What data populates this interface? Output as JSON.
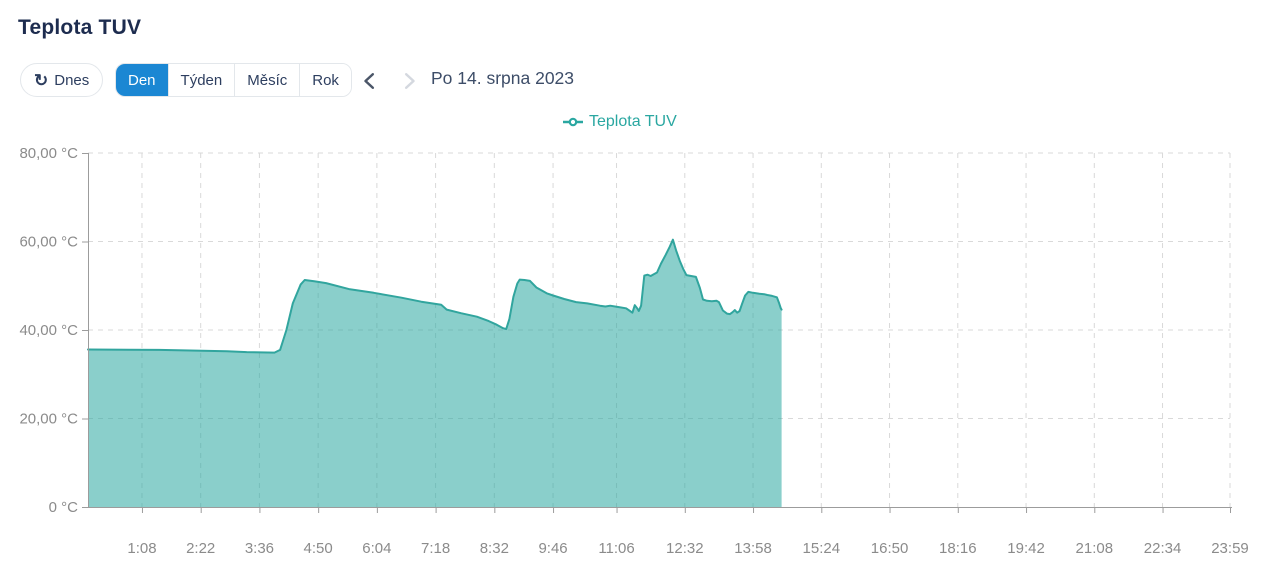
{
  "page": {
    "title": "Teplota TUV"
  },
  "toolbar": {
    "today_label": "Dnes",
    "refresh_icon_glyph": "↻",
    "range_buttons": [
      {
        "label": "Den",
        "active": true
      },
      {
        "label": "Týden",
        "active": false
      },
      {
        "label": "Měsíc",
        "active": false
      },
      {
        "label": "Rok",
        "active": false
      }
    ],
    "date_label": "Po 14. srpna 2023"
  },
  "legend": {
    "label": "Teplota TUV",
    "position": "top-center"
  },
  "colors": {
    "accent_blue": "#1b87d3",
    "series_teal": "#2aa7a1",
    "series_line": "#31a59e",
    "area_fill": "rgba(42,167,161,0.55)",
    "grid": "#d9d9d9",
    "axis": "#9c9c9c",
    "tick_text": "#8b8b8b",
    "title_text": "#1d2c4f",
    "chevron_active": "#4b5668",
    "chevron_disabled": "#d4d8df"
  },
  "chart_data": {
    "type": "area",
    "title": "Teplota TUV",
    "x_axis": "time of day (minutes from 00:00)",
    "y_axis": "temperature °C",
    "ylim": [
      0,
      80
    ],
    "x_range_minutes": [
      0,
      1439
    ],
    "grid": "dashed",
    "legend_position": "top-center",
    "y_ticks": [
      {
        "label": "80,00 °C",
        "value": 80
      },
      {
        "label": "60,00 °C",
        "value": 60
      },
      {
        "label": "40,00 °C",
        "value": 40
      },
      {
        "label": "20,00 °C",
        "value": 20
      },
      {
        "label": "0 °C",
        "value": 0
      }
    ],
    "x_ticks": [
      {
        "label": "1:08",
        "min": 68
      },
      {
        "label": "2:22",
        "min": 142
      },
      {
        "label": "3:36",
        "min": 216
      },
      {
        "label": "4:50",
        "min": 290
      },
      {
        "label": "6:04",
        "min": 364
      },
      {
        "label": "7:18",
        "min": 438
      },
      {
        "label": "8:32",
        "min": 512
      },
      {
        "label": "9:46",
        "min": 586
      },
      {
        "label": "11:06",
        "min": 666
      },
      {
        "label": "12:32",
        "min": 752
      },
      {
        "label": "13:58",
        "min": 838
      },
      {
        "label": "15:24",
        "min": 924
      },
      {
        "label": "16:50",
        "min": 1010
      },
      {
        "label": "18:16",
        "min": 1096
      },
      {
        "label": "19:42",
        "min": 1182
      },
      {
        "label": "21:08",
        "min": 1268
      },
      {
        "label": "22:34",
        "min": 1354
      },
      {
        "label": "23:59",
        "min": 1439
      }
    ],
    "series": [
      {
        "name": "Teplota TUV",
        "color": "#2aa7a1",
        "points_format": "[minutes_from_midnight, celsius]",
        "points": [
          [
            0,
            35.6
          ],
          [
            90,
            35.5
          ],
          [
            175,
            35.2
          ],
          [
            200,
            35.0
          ],
          [
            235,
            34.9
          ],
          [
            242,
            35.5
          ],
          [
            250,
            40.0
          ],
          [
            258,
            46.0
          ],
          [
            268,
            50.3
          ],
          [
            273,
            51.3
          ],
          [
            285,
            51.0
          ],
          [
            300,
            50.6
          ],
          [
            330,
            49.2
          ],
          [
            360,
            48.4
          ],
          [
            395,
            47.3
          ],
          [
            420,
            46.4
          ],
          [
            445,
            45.7
          ],
          [
            452,
            44.6
          ],
          [
            470,
            43.8
          ],
          [
            490,
            43.0
          ],
          [
            505,
            42.0
          ],
          [
            515,
            41.2
          ],
          [
            523,
            40.4
          ],
          [
            527,
            40.2
          ],
          [
            531,
            42.5
          ],
          [
            536,
            47.5
          ],
          [
            541,
            50.5
          ],
          [
            544,
            51.4
          ],
          [
            550,
            51.3
          ],
          [
            557,
            51.1
          ],
          [
            565,
            49.6
          ],
          [
            578,
            48.3
          ],
          [
            586,
            47.8
          ],
          [
            600,
            47.0
          ],
          [
            615,
            46.3
          ],
          [
            629,
            46.0
          ],
          [
            645,
            45.5
          ],
          [
            652,
            45.3
          ],
          [
            658,
            45.5
          ],
          [
            668,
            45.2
          ],
          [
            678,
            44.9
          ],
          [
            683,
            44.3
          ],
          [
            686,
            43.9
          ],
          [
            689,
            45.6
          ],
          [
            692,
            44.9
          ],
          [
            694,
            44.3
          ],
          [
            697,
            45.5
          ],
          [
            701,
            52.3
          ],
          [
            705,
            52.5
          ],
          [
            709,
            52.2
          ],
          [
            713,
            52.6
          ],
          [
            717,
            53.0
          ],
          [
            722,
            55.0
          ],
          [
            728,
            57.0
          ],
          [
            733,
            58.8
          ],
          [
            737,
            60.4
          ],
          [
            741,
            58.0
          ],
          [
            746,
            55.5
          ],
          [
            750,
            53.8
          ],
          [
            754,
            52.4
          ],
          [
            760,
            52.2
          ],
          [
            766,
            52.0
          ],
          [
            771,
            49.5
          ],
          [
            775,
            46.9
          ],
          [
            780,
            46.6
          ],
          [
            786,
            46.5
          ],
          [
            792,
            46.6
          ],
          [
            795,
            46.3
          ],
          [
            800,
            44.4
          ],
          [
            805,
            43.7
          ],
          [
            809,
            43.6
          ],
          [
            812,
            44.0
          ],
          [
            815,
            44.5
          ],
          [
            818,
            43.9
          ],
          [
            821,
            44.3
          ],
          [
            824,
            45.8
          ],
          [
            828,
            47.8
          ],
          [
            832,
            48.6
          ],
          [
            838,
            48.4
          ],
          [
            846,
            48.2
          ],
          [
            852,
            48.1
          ],
          [
            856,
            47.9
          ],
          [
            862,
            47.7
          ],
          [
            868,
            47.4
          ],
          [
            871,
            46.0
          ],
          [
            873,
            44.9
          ],
          [
            874,
            44.6
          ]
        ]
      }
    ]
  }
}
